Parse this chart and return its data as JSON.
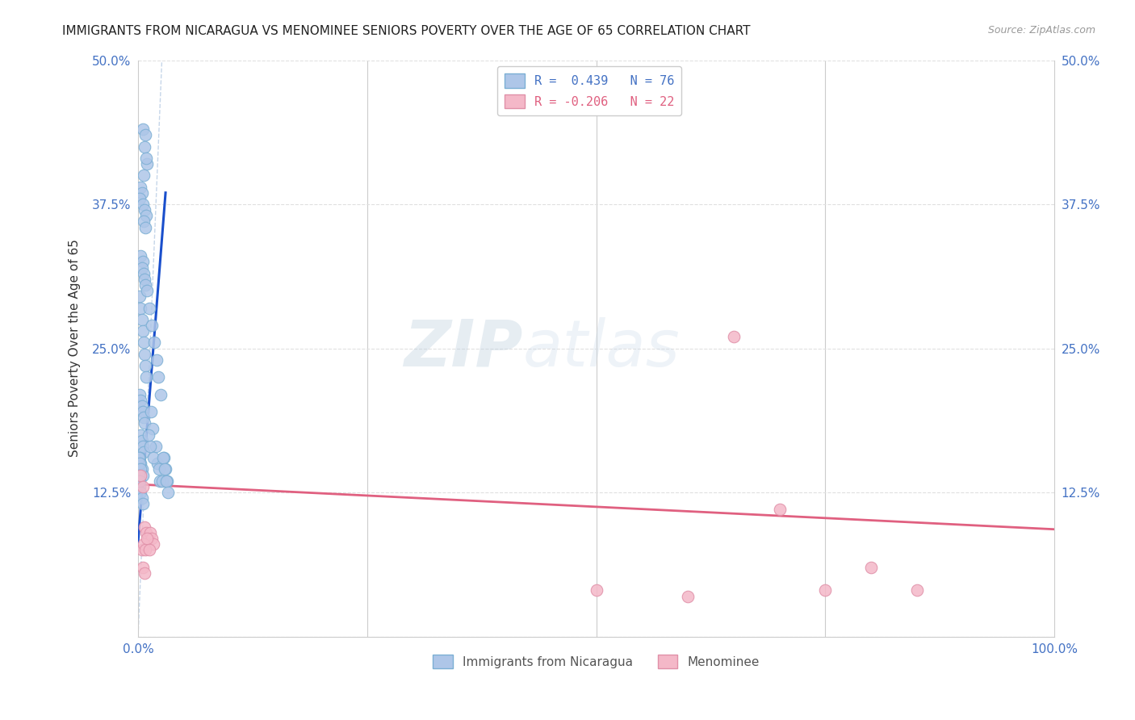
{
  "title": "IMMIGRANTS FROM NICARAGUA VS MENOMINEE SENIORS POVERTY OVER THE AGE OF 65 CORRELATION CHART",
  "source": "Source: ZipAtlas.com",
  "ylabel": "Seniors Poverty Over the Age of 65",
  "yticks": [
    0.0,
    0.125,
    0.25,
    0.375,
    0.5
  ],
  "ytick_labels": [
    "",
    "12.5%",
    "25.0%",
    "37.5%",
    "50.0%"
  ],
  "xlim": [
    0.0,
    1.0
  ],
  "ylim": [
    0.0,
    0.5
  ],
  "legend_entries": [
    {
      "label": "R =  0.439   N = 76",
      "color": "#aec6e8",
      "text_color": "#4472c4"
    },
    {
      "label": "R = -0.206   N = 22",
      "color": "#f4b8c8",
      "text_color": "#e06080"
    }
  ],
  "watermark_zip": "ZIP",
  "watermark_atlas": "atlas",
  "blue_scatter_x": [
    0.005,
    0.008,
    0.01,
    0.007,
    0.009,
    0.006,
    0.003,
    0.004,
    0.002,
    0.005,
    0.007,
    0.009,
    0.006,
    0.008,
    0.003,
    0.005,
    0.004,
    0.006,
    0.007,
    0.008,
    0.002,
    0.003,
    0.004,
    0.005,
    0.006,
    0.007,
    0.008,
    0.009,
    0.002,
    0.003,
    0.004,
    0.005,
    0.006,
    0.007,
    0.003,
    0.004,
    0.005,
    0.006,
    0.002,
    0.003,
    0.004,
    0.005,
    0.001,
    0.002,
    0.003,
    0.004,
    0.005,
    0.001,
    0.002,
    0.003,
    0.001,
    0.002,
    0.01,
    0.012,
    0.015,
    0.018,
    0.02,
    0.022,
    0.025,
    0.014,
    0.016,
    0.019,
    0.021,
    0.024,
    0.013,
    0.017,
    0.023,
    0.026,
    0.011,
    0.028,
    0.03,
    0.032,
    0.027,
    0.029,
    0.031,
    0.033
  ],
  "blue_scatter_y": [
    0.44,
    0.435,
    0.41,
    0.425,
    0.415,
    0.4,
    0.39,
    0.385,
    0.38,
    0.375,
    0.37,
    0.365,
    0.36,
    0.355,
    0.33,
    0.325,
    0.32,
    0.315,
    0.31,
    0.305,
    0.295,
    0.285,
    0.275,
    0.265,
    0.255,
    0.245,
    0.235,
    0.225,
    0.21,
    0.205,
    0.2,
    0.195,
    0.19,
    0.185,
    0.175,
    0.17,
    0.165,
    0.16,
    0.155,
    0.15,
    0.145,
    0.14,
    0.135,
    0.13,
    0.125,
    0.12,
    0.115,
    0.155,
    0.15,
    0.145,
    0.14,
    0.135,
    0.3,
    0.285,
    0.27,
    0.255,
    0.24,
    0.225,
    0.21,
    0.195,
    0.18,
    0.165,
    0.15,
    0.135,
    0.165,
    0.155,
    0.145,
    0.135,
    0.175,
    0.155,
    0.145,
    0.135,
    0.155,
    0.145,
    0.135,
    0.125
  ],
  "pink_scatter_x": [
    0.003,
    0.005,
    0.007,
    0.009,
    0.011,
    0.013,
    0.015,
    0.017,
    0.004,
    0.006,
    0.008,
    0.01,
    0.012,
    0.005,
    0.007,
    0.5,
    0.6,
    0.65,
    0.7,
    0.75,
    0.8,
    0.85
  ],
  "pink_scatter_y": [
    0.14,
    0.13,
    0.095,
    0.09,
    0.085,
    0.09,
    0.085,
    0.08,
    0.075,
    0.08,
    0.075,
    0.085,
    0.075,
    0.06,
    0.055,
    0.04,
    0.035,
    0.26,
    0.11,
    0.04,
    0.06,
    0.04
  ],
  "blue_line_x": [
    0.0,
    0.03
  ],
  "blue_line_y": [
    0.082,
    0.385
  ],
  "pink_line_x": [
    0.0,
    1.0
  ],
  "pink_line_y": [
    0.132,
    0.093
  ],
  "dashed_line_x": [
    0.0,
    0.026
  ],
  "dashed_line_y": [
    0.0,
    0.5
  ],
  "title_fontsize": 11,
  "axis_color": "#4472c4",
  "scatter_blue_color": "#aec6e8",
  "scatter_blue_edge": "#7bafd4",
  "scatter_pink_color": "#f4b8c8",
  "scatter_pink_edge": "#e090a8",
  "blue_line_color": "#1a4fcc",
  "pink_line_color": "#e06080",
  "dashed_line_color": "#b8cce4",
  "grid_color": "#e0e0e0",
  "background_color": "#ffffff",
  "tick_line_color": "#cccccc"
}
